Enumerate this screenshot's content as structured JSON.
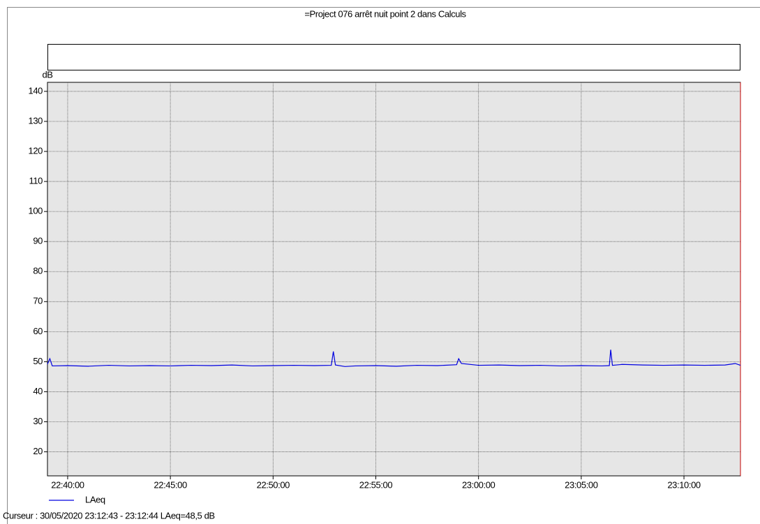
{
  "chart_data": {
    "type": "line",
    "title": "=Project 076 arrêt nuit point 2 dans Calculs",
    "y_label": "dB",
    "cursor": "Curseur : 30/05/2020 23:12:43 - 23:12:44  LAeq=48,5 dB",
    "x": [
      "22:39:01",
      "22:39:08",
      "22:39:15",
      "22:40:00",
      "22:41:00",
      "22:42:00",
      "22:43:00",
      "22:44:00",
      "22:45:00",
      "22:46:00",
      "22:47:00",
      "22:48:00",
      "22:49:00",
      "22:50:00",
      "22:51:00",
      "22:52:00",
      "22:52:50",
      "22:52:56",
      "22:53:02",
      "22:53:30",
      "22:54:00",
      "22:55:00",
      "22:56:00",
      "22:57:00",
      "22:58:00",
      "22:58:56",
      "22:59:02",
      "22:59:10",
      "23:00:00",
      "23:01:00",
      "23:02:00",
      "23:03:00",
      "23:04:00",
      "23:05:00",
      "23:06:00",
      "23:06:22",
      "23:06:26",
      "23:06:31",
      "23:07:00",
      "23:08:00",
      "23:09:00",
      "23:10:00",
      "23:11:00",
      "23:12:00",
      "23:12:30",
      "23:12:45"
    ],
    "series": [
      {
        "name": "LAeq",
        "color": "#0000e0",
        "values": [
          49.2,
          51.0,
          48.6,
          48.7,
          48.5,
          48.8,
          48.6,
          48.7,
          48.6,
          48.8,
          48.7,
          48.9,
          48.6,
          48.7,
          48.8,
          48.7,
          48.8,
          53.4,
          48.9,
          48.4,
          48.6,
          48.7,
          48.5,
          48.8,
          48.7,
          49.0,
          51.0,
          49.4,
          48.8,
          48.9,
          48.7,
          48.8,
          48.6,
          48.7,
          48.6,
          48.7,
          54.0,
          48.8,
          49.1,
          48.9,
          48.8,
          48.9,
          48.8,
          48.9,
          49.4,
          48.8
        ]
      }
    ],
    "xlim": [
      "22:39:01",
      "23:12:45"
    ],
    "xticks": [
      "22:40:00",
      "22:45:00",
      "22:50:00",
      "22:55:00",
      "23:00:00",
      "23:05:00",
      "23:10:00"
    ],
    "ylim": [
      12,
      143
    ],
    "yticks": [
      20,
      30,
      40,
      50,
      60,
      70,
      80,
      90,
      100,
      110,
      120,
      130,
      140
    ],
    "grid": true
  }
}
